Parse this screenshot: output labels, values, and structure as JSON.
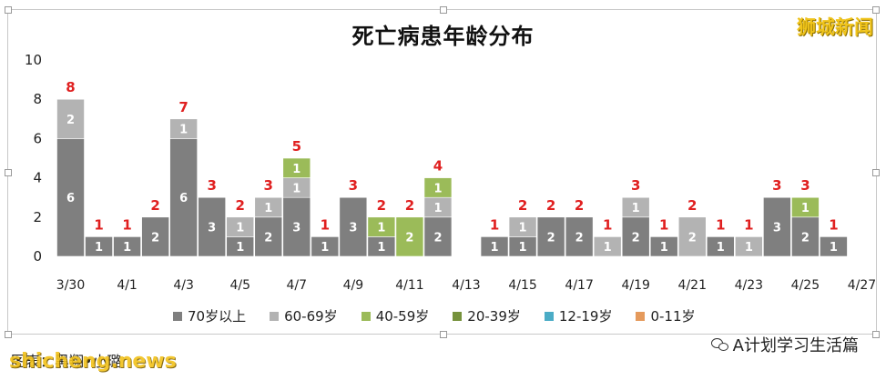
{
  "brand": "狮城新闻",
  "footer": {
    "credit": "图表：黑翔•小璐",
    "watermark": "shicheng.news",
    "wechat_account": "A计划学习生活篇"
  },
  "icons": {
    "wechat": "wechat-icon"
  },
  "chart_data": {
    "type": "bar",
    "stacked": true,
    "title": "死亡病患年龄分布",
    "xlabel": "",
    "ylabel": "",
    "ylim": [
      0,
      10
    ],
    "yticks": [
      0,
      2,
      4,
      6,
      8,
      10
    ],
    "grid": false,
    "legend_position": "bottom",
    "categories": [
      "3/30",
      "3/31",
      "4/1",
      "4/2",
      "4/3",
      "4/4",
      "4/5",
      "4/6",
      "4/7",
      "4/8",
      "4/9",
      "4/10",
      "4/11",
      "4/12",
      "4/13",
      "4/14",
      "4/15",
      "4/16",
      "4/17",
      "4/18",
      "4/19",
      "4/20",
      "4/21",
      "4/22",
      "4/23",
      "4/24",
      "4/25",
      "4/26",
      "4/27"
    ],
    "xtick_labels": [
      "3/30",
      "4/1",
      "4/3",
      "4/5",
      "4/7",
      "4/9",
      "4/11",
      "4/13",
      "4/15",
      "4/17",
      "4/19",
      "4/21",
      "4/23",
      "4/25",
      "4/27"
    ],
    "series": [
      {
        "name": "70岁以上",
        "color": "#7f7f7f",
        "values": [
          6,
          1,
          1,
          2,
          6,
          3,
          1,
          2,
          3,
          1,
          3,
          1,
          0,
          2,
          0,
          1,
          1,
          2,
          2,
          0,
          2,
          1,
          0,
          1,
          0,
          3,
          2,
          1,
          0
        ]
      },
      {
        "name": "60-69岁",
        "color": "#b3b3b3",
        "values": [
          2,
          0,
          0,
          0,
          1,
          0,
          1,
          1,
          1,
          0,
          0,
          0,
          0,
          1,
          0,
          0,
          1,
          0,
          0,
          1,
          1,
          0,
          2,
          0,
          1,
          0,
          0,
          0,
          0
        ]
      },
      {
        "name": "40-59岁",
        "color": "#9bbb59",
        "values": [
          0,
          0,
          0,
          0,
          0,
          0,
          0,
          0,
          1,
          0,
          0,
          1,
          2,
          1,
          0,
          0,
          0,
          0,
          0,
          0,
          0,
          0,
          0,
          0,
          0,
          0,
          1,
          0,
          0
        ]
      },
      {
        "name": "20-39岁",
        "color": "#76923c",
        "values": [
          0,
          0,
          0,
          0,
          0,
          0,
          0,
          0,
          0,
          0,
          0,
          0,
          0,
          0,
          0,
          0,
          0,
          0,
          0,
          0,
          0,
          0,
          0,
          0,
          0,
          0,
          0,
          0,
          0
        ]
      },
      {
        "name": "12-19岁",
        "color": "#4bacc6",
        "values": [
          0,
          0,
          0,
          0,
          0,
          0,
          0,
          0,
          0,
          0,
          0,
          0,
          0,
          0,
          0,
          0,
          0,
          0,
          0,
          0,
          0,
          0,
          0,
          0,
          0,
          0,
          0,
          0,
          0
        ]
      },
      {
        "name": "0-11岁",
        "color": "#e59a5c",
        "values": [
          0,
          0,
          0,
          0,
          0,
          0,
          0,
          0,
          0,
          0,
          0,
          0,
          0,
          0,
          0,
          0,
          0,
          0,
          0,
          0,
          0,
          0,
          0,
          0,
          0,
          0,
          0,
          0,
          0
        ]
      }
    ],
    "totals": [
      8,
      1,
      1,
      2,
      7,
      3,
      2,
      3,
      5,
      1,
      3,
      2,
      2,
      4,
      null,
      1,
      2,
      2,
      2,
      1,
      3,
      1,
      2,
      1,
      1,
      3,
      3,
      1,
      null
    ],
    "total_label_color": "#e02020"
  }
}
